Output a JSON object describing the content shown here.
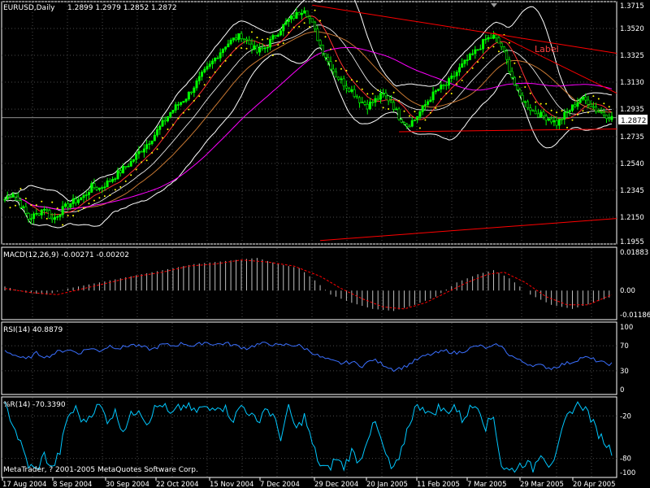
{
  "header": {
    "symbol_tf": "EURUSD,Daily",
    "ohlc": "1.2899 1.2979 1.2852 1.2872"
  },
  "footer_copyright": "MetaTrader, ? 2001-2005 MetaQuotes Software Corp.",
  "drawing_label": "Label",
  "colors": {
    "background": "#000000",
    "bull_candle": "#00ff00",
    "bear_candle": "#000000",
    "bollinger": "#ffffff",
    "ma_fast": "#ff3030",
    "ma_mid": "#c87832",
    "ma_slow": "#ff00ff",
    "sar": "#ffff00",
    "trendline": "#ff0000",
    "grid": "#4a4a4a",
    "macd_hist": "#c0c0c0",
    "macd_signal": "#ff0000",
    "rsi": "#3a6fff",
    "wpr": "#00c8ff",
    "current_price_line": "#c0c0c0"
  },
  "chart_data": [
    {
      "id": "price",
      "type": "candlestick",
      "title": "EURUSD,Daily",
      "ohlc_last": [
        1.2899,
        1.2979,
        1.2852,
        1.2872
      ],
      "current_price": 1.2872,
      "ylim": [
        1.1955,
        1.3715
      ],
      "y_ticks": [
        "1.3715",
        "1.3520",
        "1.3325",
        "1.3130",
        "1.2935",
        "1.2735",
        "1.2540",
        "1.2345",
        "1.2150",
        "1.1955"
      ],
      "x_ticks": [
        "17 Aug 2004",
        "8 Sep 2004",
        "30 Sep 2004",
        "22 Oct 2004",
        "15 Nov 2004",
        "7 Dec 2004",
        "29 Dec 2004",
        "20 Jan 2005",
        "11 Feb 2005",
        "7 Mar 2005",
        "29 Mar 2005",
        "20 Apr 2005"
      ],
      "close_path": [
        [
          0,
          1.228
        ],
        [
          3,
          1.233
        ],
        [
          6,
          1.224
        ],
        [
          9,
          1.214
        ],
        [
          12,
          1.217
        ],
        [
          15,
          1.222
        ],
        [
          18,
          1.213
        ],
        [
          21,
          1.219
        ],
        [
          24,
          1.224
        ],
        [
          27,
          1.227
        ],
        [
          30,
          1.23
        ],
        [
          33,
          1.237
        ],
        [
          36,
          1.236
        ],
        [
          39,
          1.24
        ],
        [
          42,
          1.245
        ],
        [
          45,
          1.25
        ],
        [
          48,
          1.255
        ],
        [
          51,
          1.262
        ],
        [
          54,
          1.268
        ],
        [
          57,
          1.275
        ],
        [
          60,
          1.283
        ],
        [
          63,
          1.291
        ],
        [
          66,
          1.297
        ],
        [
          69,
          1.302
        ],
        [
          72,
          1.31
        ],
        [
          75,
          1.318
        ],
        [
          78,
          1.325
        ],
        [
          81,
          1.333
        ],
        [
          84,
          1.34
        ],
        [
          87,
          1.344
        ],
        [
          90,
          1.347
        ],
        [
          93,
          1.341
        ],
        [
          96,
          1.335
        ],
        [
          99,
          1.338
        ],
        [
          102,
          1.345
        ],
        [
          105,
          1.352
        ],
        [
          108,
          1.358
        ],
        [
          111,
          1.362
        ],
        [
          114,
          1.367
        ],
        [
          117,
          1.355
        ],
        [
          120,
          1.34
        ],
        [
          123,
          1.328
        ],
        [
          126,
          1.318
        ],
        [
          129,
          1.312
        ],
        [
          132,
          1.307
        ],
        [
          135,
          1.3
        ],
        [
          138,
          1.296
        ],
        [
          141,
          1.3
        ],
        [
          144,
          1.304
        ],
        [
          147,
          1.299
        ],
        [
          150,
          1.288
        ],
        [
          153,
          1.282
        ],
        [
          156,
          1.286
        ],
        [
          159,
          1.294
        ],
        [
          162,
          1.302
        ],
        [
          165,
          1.308
        ],
        [
          168,
          1.311
        ],
        [
          171,
          1.318
        ],
        [
          174,
          1.325
        ],
        [
          177,
          1.331
        ],
        [
          180,
          1.337
        ],
        [
          183,
          1.344
        ],
        [
          186,
          1.346
        ],
        [
          189,
          1.339
        ],
        [
          192,
          1.323
        ],
        [
          195,
          1.305
        ],
        [
          198,
          1.298
        ],
        [
          201,
          1.292
        ],
        [
          204,
          1.289
        ],
        [
          207,
          1.287
        ],
        [
          210,
          1.283
        ],
        [
          213,
          1.289
        ],
        [
          216,
          1.295
        ],
        [
          219,
          1.301
        ],
        [
          222,
          1.299
        ],
        [
          225,
          1.293
        ],
        [
          228,
          1.29
        ],
        [
          231,
          1.287
        ]
      ],
      "indicators": [
        "Bollinger Bands",
        "Moving Averages",
        "Parabolic SAR",
        "Trendlines"
      ]
    },
    {
      "id": "macd",
      "type": "histogram",
      "title": "MACD(12,26,9) -0.00271 -0.00202",
      "y_ticks": [
        "0.01883",
        "0.00",
        "-0.01186"
      ],
      "ylim": [
        -0.01186,
        0.01883
      ],
      "histogram": [
        [
          0,
          0.002
        ],
        [
          8,
          -0.001
        ],
        [
          16,
          -0.002
        ],
        [
          24,
          0.001
        ],
        [
          32,
          0.003
        ],
        [
          40,
          0.005
        ],
        [
          48,
          0.007
        ],
        [
          56,
          0.009
        ],
        [
          64,
          0.011
        ],
        [
          72,
          0.013
        ],
        [
          80,
          0.014
        ],
        [
          88,
          0.015
        ],
        [
          96,
          0.016
        ],
        [
          104,
          0.013
        ],
        [
          112,
          0.011
        ],
        [
          118,
          0.005
        ],
        [
          124,
          -0.002
        ],
        [
          132,
          -0.006
        ],
        [
          140,
          -0.009
        ],
        [
          148,
          -0.01
        ],
        [
          156,
          -0.007
        ],
        [
          164,
          -0.003
        ],
        [
          172,
          0.004
        ],
        [
          180,
          0.008
        ],
        [
          186,
          0.01
        ],
        [
          192,
          0.006
        ],
        [
          200,
          -0.002
        ],
        [
          208,
          -0.007
        ],
        [
          216,
          -0.009
        ],
        [
          224,
          -0.006
        ],
        [
          231,
          -0.003
        ]
      ],
      "signal": [
        [
          0,
          0.001
        ],
        [
          10,
          -0.001
        ],
        [
          20,
          -0.002
        ],
        [
          30,
          0.001
        ],
        [
          40,
          0.004
        ],
        [
          50,
          0.007
        ],
        [
          60,
          0.009
        ],
        [
          70,
          0.012
        ],
        [
          80,
          0.013
        ],
        [
          90,
          0.015
        ],
        [
          100,
          0.014
        ],
        [
          110,
          0.012
        ],
        [
          120,
          0.007
        ],
        [
          128,
          0.001
        ],
        [
          136,
          -0.004
        ],
        [
          144,
          -0.008
        ],
        [
          152,
          -0.009
        ],
        [
          160,
          -0.006
        ],
        [
          168,
          -0.001
        ],
        [
          176,
          0.004
        ],
        [
          184,
          0.008
        ],
        [
          190,
          0.009
        ],
        [
          198,
          0.004
        ],
        [
          206,
          -0.003
        ],
        [
          214,
          -0.007
        ],
        [
          222,
          -0.007
        ],
        [
          231,
          -0.002
        ]
      ]
    },
    {
      "id": "rsi",
      "type": "line",
      "title": "RSI(14) 40.8879",
      "y_ticks": [
        "100",
        "70",
        "30",
        "0"
      ],
      "ylim": [
        0,
        100
      ],
      "values": [
        [
          0,
          62
        ],
        [
          4,
          55
        ],
        [
          8,
          48
        ],
        [
          12,
          58
        ],
        [
          16,
          52
        ],
        [
          20,
          60
        ],
        [
          24,
          64
        ],
        [
          28,
          58
        ],
        [
          32,
          66
        ],
        [
          36,
          62
        ],
        [
          40,
          70
        ],
        [
          44,
          66
        ],
        [
          48,
          72
        ],
        [
          52,
          68
        ],
        [
          56,
          64
        ],
        [
          60,
          72
        ],
        [
          64,
          70
        ],
        [
          68,
          74
        ],
        [
          72,
          69
        ],
        [
          76,
          76
        ],
        [
          80,
          72
        ],
        [
          84,
          74
        ],
        [
          88,
          70
        ],
        [
          92,
          66
        ],
        [
          96,
          72
        ],
        [
          100,
          74
        ],
        [
          104,
          70
        ],
        [
          108,
          72
        ],
        [
          112,
          70
        ],
        [
          116,
          62
        ],
        [
          120,
          52
        ],
        [
          124,
          46
        ],
        [
          128,
          42
        ],
        [
          132,
          44
        ],
        [
          136,
          38
        ],
        [
          140,
          48
        ],
        [
          144,
          40
        ],
        [
          148,
          32
        ],
        [
          152,
          36
        ],
        [
          156,
          46
        ],
        [
          160,
          54
        ],
        [
          164,
          58
        ],
        [
          168,
          62
        ],
        [
          172,
          58
        ],
        [
          176,
          64
        ],
        [
          180,
          70
        ],
        [
          184,
          66
        ],
        [
          188,
          72
        ],
        [
          192,
          56
        ],
        [
          196,
          46
        ],
        [
          200,
          40
        ],
        [
          204,
          38
        ],
        [
          208,
          34
        ],
        [
          212,
          40
        ],
        [
          216,
          44
        ],
        [
          220,
          52
        ],
        [
          224,
          48
        ],
        [
          228,
          42
        ],
        [
          231,
          41
        ]
      ]
    },
    {
      "id": "wpr",
      "type": "line",
      "title": "%R(14) -70.3390",
      "y_ticks": [
        "-20",
        "-80",
        "-100"
      ],
      "ylim": [
        -100,
        0
      ],
      "values": [
        [
          0,
          -5
        ],
        [
          3,
          -30
        ],
        [
          6,
          -60
        ],
        [
          9,
          -90
        ],
        [
          12,
          -97
        ],
        [
          15,
          -75
        ],
        [
          18,
          -95
        ],
        [
          21,
          -70
        ],
        [
          24,
          -20
        ],
        [
          27,
          -10
        ],
        [
          30,
          -30
        ],
        [
          33,
          -15
        ],
        [
          36,
          -5
        ],
        [
          39,
          -25
        ],
        [
          42,
          -15
        ],
        [
          45,
          -40
        ],
        [
          48,
          -20
        ],
        [
          51,
          -8
        ],
        [
          54,
          -30
        ],
        [
          57,
          -10
        ],
        [
          60,
          -3
        ],
        [
          63,
          -20
        ],
        [
          66,
          -10
        ],
        [
          69,
          -5
        ],
        [
          72,
          -15
        ],
        [
          75,
          -8
        ],
        [
          78,
          -12
        ],
        [
          81,
          -3
        ],
        [
          84,
          -10
        ],
        [
          87,
          -25
        ],
        [
          90,
          -5
        ],
        [
          93,
          -15
        ],
        [
          96,
          -30
        ],
        [
          99,
          -8
        ],
        [
          102,
          -20
        ],
        [
          105,
          -50
        ],
        [
          108,
          -10
        ],
        [
          111,
          -40
        ],
        [
          114,
          -20
        ],
        [
          117,
          -60
        ],
        [
          120,
          -90
        ],
        [
          123,
          -96
        ],
        [
          126,
          -80
        ],
        [
          129,
          -92
        ],
        [
          132,
          -70
        ],
        [
          135,
          -85
        ],
        [
          138,
          -50
        ],
        [
          141,
          -30
        ],
        [
          144,
          -65
        ],
        [
          147,
          -95
        ],
        [
          150,
          -85
        ],
        [
          153,
          -40
        ],
        [
          156,
          -10
        ],
        [
          159,
          -5
        ],
        [
          162,
          -20
        ],
        [
          165,
          -8
        ],
        [
          168,
          -15
        ],
        [
          171,
          -5
        ],
        [
          174,
          -25
        ],
        [
          177,
          -10
        ],
        [
          180,
          -3
        ],
        [
          183,
          -35
        ],
        [
          186,
          -20
        ],
        [
          189,
          -90
        ],
        [
          192,
          -98
        ],
        [
          195,
          -92
        ],
        [
          198,
          -85
        ],
        [
          201,
          -95
        ],
        [
          204,
          -70
        ],
        [
          207,
          -88
        ],
        [
          210,
          -75
        ],
        [
          213,
          -30
        ],
        [
          216,
          -10
        ],
        [
          219,
          -2
        ],
        [
          222,
          -15
        ],
        [
          225,
          -40
        ],
        [
          228,
          -55
        ],
        [
          231,
          -70
        ]
      ]
    }
  ]
}
